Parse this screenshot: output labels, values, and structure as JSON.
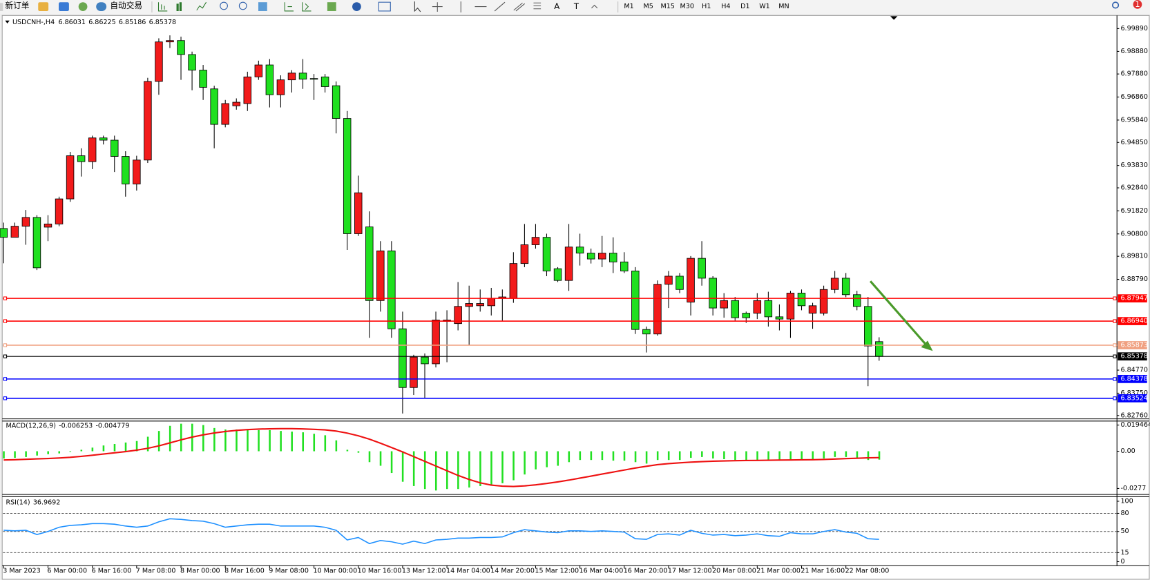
{
  "toolbar": {
    "new_order": "新订单",
    "auto_trading": "自动交易",
    "text_tools": [
      "A",
      "T"
    ],
    "timeframes": [
      "M1",
      "M5",
      "M15",
      "M30",
      "H1",
      "H4",
      "D1",
      "W1",
      "MN"
    ],
    "notification_count": 1
  },
  "chart_data": [
    {
      "type": "candlestick",
      "title": "USDCNH-,H4",
      "categories": [
        "3 Mar 2023",
        null,
        null,
        null,
        "6 Mar 00:00",
        null,
        null,
        null,
        "6 Mar 16:00",
        null,
        null,
        null,
        "7 Mar 08:00",
        null,
        null,
        null,
        "8 Mar 00:00",
        null,
        null,
        null,
        "8 Mar 16:00",
        null,
        null,
        null,
        "9 Mar 08:00",
        null,
        null,
        null,
        "10 Mar 00:00",
        null,
        null,
        null,
        "10 Mar 16:00",
        null,
        null,
        null,
        "13 Mar 12:00",
        null,
        null,
        null,
        "14 Mar 04:00",
        null,
        null,
        null,
        "14 Mar 20:00",
        null,
        null,
        null,
        "15 Mar 12:00",
        null,
        null,
        null,
        "16 Mar 04:00",
        null,
        null,
        null,
        "16 Mar 20:00",
        null,
        null,
        null,
        "17 Mar 12:00",
        null,
        null,
        null,
        "20 Mar 08:00",
        null,
        null,
        null,
        "21 Mar 00:00",
        null,
        null,
        null,
        "21 Mar 16:00",
        null,
        null,
        null,
        "22 Mar 08:00",
        null,
        null,
        null
      ],
      "open": [
        6.9104,
        6.9065,
        6.9114,
        6.9153,
        6.911,
        6.9124,
        6.9235,
        6.9426,
        6.94,
        6.9505,
        6.9495,
        6.9423,
        6.9301,
        6.9407,
        6.9755,
        6.993,
        6.9936,
        6.9874,
        6.9805,
        6.9722,
        6.9565,
        6.9647,
        6.9657,
        6.9775,
        6.9828,
        6.9696,
        6.9762,
        6.9792,
        6.9768,
        6.9775,
        6.9736,
        6.9591,
        6.9081,
        6.9111,
        6.8785,
        6.9005,
        6.866,
        6.84,
        6.8535,
        6.8505,
        6.8693,
        6.8683,
        6.8759,
        6.8762,
        6.8762,
        6.8795,
        6.8795,
        6.8949,
        6.9032,
        6.9065,
        6.8926,
        6.8874,
        6.9022,
        6.8995,
        6.8969,
        6.8995,
        6.8956,
        6.8916,
        6.8657,
        6.8637,
        6.8857,
        6.8893,
        6.8778,
        6.8972,
        6.8884,
        6.8752,
        6.8785,
        6.8729,
        6.8729,
        6.8785,
        6.8713,
        6.8703,
        6.8818,
        6.8729,
        6.8729,
        6.8834,
        6.8884,
        6.8811,
        6.8759,
        6.86031
      ],
      "high": [
        6.913,
        6.913,
        6.9186,
        6.9163,
        6.9163,
        6.9245,
        6.9443,
        6.9459,
        6.9515,
        6.9515,
        6.9515,
        6.9446,
        6.9426,
        6.9771,
        6.9946,
        6.9959,
        6.9953,
        6.9887,
        6.9828,
        6.9736,
        6.9673,
        6.968,
        6.9798,
        6.9847,
        6.9854,
        6.9782,
        6.9805,
        6.9854,
        6.9788,
        6.9788,
        6.9755,
        6.9624,
        6.9338,
        6.918,
        6.9048,
        6.9048,
        6.8736,
        6.8545,
        6.8551,
        6.8736,
        6.8742,
        6.8867,
        6.8851,
        6.8834,
        6.8841,
        6.8834,
        6.8999,
        6.9124,
        6.9124,
        6.9081,
        6.8933,
        6.9124,
        6.9081,
        6.9015,
        6.9071,
        6.9065,
        6.8999,
        6.8933,
        6.867,
        6.8874,
        6.8916,
        6.8907,
        6.8982,
        6.9048,
        6.8893,
        6.8818,
        6.8801,
        6.8736,
        6.8818,
        6.8824,
        6.8768,
        6.8828,
        6.8834,
        6.8775,
        6.8851,
        6.8916,
        6.8907,
        6.8828,
        6.8801,
        6.86225
      ],
      "low": [
        6.895,
        6.9065,
        6.9032,
        6.892,
        6.9048,
        6.9114,
        6.9222,
        6.9334,
        6.9367,
        6.9476,
        6.9354,
        6.9245,
        6.9272,
        6.9394,
        6.9696,
        6.9903,
        6.9762,
        6.9716,
        6.9673,
        6.9459,
        6.9552,
        6.963,
        6.9624,
        6.9762,
        6.964,
        6.964,
        6.9706,
        6.9722,
        6.9673,
        6.9706,
        6.9525,
        6.9009,
        6.9071,
        6.862,
        6.8736,
        6.862,
        6.8285,
        6.8367,
        6.8354,
        6.8489,
        6.8512,
        6.8653,
        6.8587,
        6.8736,
        6.8719,
        6.8696,
        6.8775,
        6.8933,
        6.9015,
        6.8893,
        6.8867,
        6.8828,
        6.894,
        6.8949,
        6.8933,
        6.8907,
        6.8907,
        6.8637,
        6.8555,
        6.863,
        6.8752,
        6.8818,
        6.8719,
        6.8851,
        6.8719,
        6.8709,
        6.8696,
        6.8686,
        6.8703,
        6.867,
        6.8653,
        6.862,
        6.8742,
        6.866,
        6.8719,
        6.8818,
        6.88,
        6.8742,
        6.8406,
        6.85186
      ],
      "close": [
        6.9065,
        6.9114,
        6.9153,
        6.893,
        6.9124,
        6.9235,
        6.9426,
        6.94,
        6.9505,
        6.9495,
        6.9423,
        6.9301,
        6.9407,
        6.9755,
        6.993,
        6.9936,
        6.9874,
        6.9805,
        6.9729,
        6.9565,
        6.9657,
        6.9663,
        6.9775,
        6.9828,
        6.9696,
        6.9762,
        6.9792,
        6.9765,
        6.9765,
        6.9732,
        6.9591,
        6.9081,
        6.9262,
        6.8785,
        6.9005,
        6.866,
        6.84,
        6.8535,
        6.8505,
        6.8699,
        6.8699,
        6.8759,
        6.8772,
        6.8772,
        6.8795,
        6.8801,
        6.8949,
        6.9032,
        6.9065,
        6.8916,
        6.8874,
        6.9022,
        6.8995,
        6.8969,
        6.8995,
        6.8956,
        6.8916,
        6.8657,
        6.8637,
        6.8857,
        6.8893,
        6.8834,
        6.8972,
        6.8884,
        6.8752,
        6.8785,
        6.8709,
        6.8709,
        6.8785,
        6.8713,
        6.8703,
        6.8818,
        6.8762,
        6.8762,
        6.8834,
        6.8884,
        6.8811,
        6.8759,
        6.8584,
        6.85378
      ],
      "up_color": "#f21b1b",
      "down_color": "#1fe01f",
      "ylim": [
        6.8263,
        7.0044
      ],
      "yticks": [
        {
          "value": 6.9989,
          "label": "6.99890"
        },
        {
          "value": 6.9888,
          "label": "6.98880"
        },
        {
          "value": 6.9788,
          "label": "6.97880"
        },
        {
          "value": 6.9686,
          "label": "6.96860"
        },
        {
          "value": 6.9584,
          "label": "6.95840"
        },
        {
          "value": 6.9485,
          "label": "6.94850"
        },
        {
          "value": 6.9383,
          "label": "6.93830"
        },
        {
          "value": 6.9284,
          "label": "6.92840"
        },
        {
          "value": 6.9182,
          "label": "6.91820"
        },
        {
          "value": 6.908,
          "label": "6.90800"
        },
        {
          "value": 6.8981,
          "label": "6.89810"
        },
        {
          "value": 6.8879,
          "label": "6.88790"
        },
        {
          "value": 6.8477,
          "label": "6.84770"
        },
        {
          "value": 6.8375,
          "label": "6.83750"
        },
        {
          "value": 6.8276,
          "label": "6.82760"
        }
      ],
      "grid": false,
      "hlines": [
        {
          "value": 6.87947,
          "color": "#ff0000"
        },
        {
          "value": 6.8694,
          "label": "6.86940",
          "color": "#ff0000"
        },
        {
          "value": 6.85873,
          "color": "#f0a080"
        },
        {
          "value": 6.85378,
          "color": "#000000"
        },
        {
          "value": 6.84378,
          "color": "#0000ff"
        },
        {
          "value": 6.83524,
          "color": "#0000ff"
        }
      ]
    },
    {
      "type": "macd",
      "title": "MACD(12,26,9)",
      "series": [
        {
          "style": "bar",
          "color": "#22e022",
          "values": [
            -0.0054,
            -0.0049,
            -0.0043,
            -0.0032,
            -0.0022,
            -0.0016,
            -0.0005,
            0.0011,
            0.0027,
            0.0043,
            0.0054,
            0.0065,
            0.0076,
            0.0108,
            0.0151,
            0.0189,
            0.0205,
            0.0205,
            0.0195,
            0.0173,
            0.0162,
            0.0162,
            0.0162,
            0.0157,
            0.0157,
            0.0151,
            0.0146,
            0.0141,
            0.013,
            0.0119,
            0.0081,
            0.0011,
            -0.0011,
            -0.0081,
            -0.0108,
            -0.0162,
            -0.0227,
            -0.0259,
            -0.0281,
            -0.0292,
            -0.0281,
            -0.0281,
            -0.027,
            -0.0259,
            -0.0249,
            -0.0238,
            -0.0216,
            -0.0173,
            -0.0135,
            -0.0119,
            -0.0108,
            -0.0081,
            -0.0065,
            -0.0065,
            -0.0065,
            -0.007,
            -0.007,
            -0.0081,
            -0.0092,
            -0.0065,
            -0.0065,
            -0.0065,
            -0.0049,
            -0.0043,
            -0.0054,
            -0.0059,
            -0.0065,
            -0.0065,
            -0.0065,
            -0.007,
            -0.007,
            -0.0065,
            -0.0065,
            -0.0065,
            -0.0054,
            -0.0043,
            -0.0043,
            -0.0049,
            -0.0065,
            -0.006253
          ]
        },
        {
          "style": "line",
          "color": "#ee1111",
          "values": [
            -0.0065,
            -0.0063,
            -0.006,
            -0.0057,
            -0.0054,
            -0.005,
            -0.0045,
            -0.0038,
            -0.003,
            -0.0021,
            -0.0012,
            -0.0003,
            0.0008,
            0.0022,
            0.004,
            0.0062,
            0.0085,
            0.0105,
            0.0122,
            0.0136,
            0.0147,
            0.0155,
            0.0161,
            0.0165,
            0.0167,
            0.0168,
            0.0168,
            0.0166,
            0.0163,
            0.0159,
            0.015,
            0.0135,
            0.0115,
            0.009,
            0.006,
            0.0028,
            -0.0005,
            -0.004,
            -0.0075,
            -0.011,
            -0.0145,
            -0.018,
            -0.021,
            -0.0235,
            -0.0252,
            -0.026,
            -0.0262,
            -0.0258,
            -0.025,
            -0.024,
            -0.0228,
            -0.0215,
            -0.02,
            -0.0185,
            -0.017,
            -0.0155,
            -0.014,
            -0.0125,
            -0.0112,
            -0.01,
            -0.0092,
            -0.0086,
            -0.0081,
            -0.0077,
            -0.0074,
            -0.0072,
            -0.007,
            -0.0069,
            -0.0068,
            -0.0067,
            -0.0066,
            -0.0065,
            -0.0064,
            -0.0063,
            -0.0061,
            -0.0058,
            -0.0055,
            -0.0052,
            -0.0049,
            -0.004779
          ]
        }
      ],
      "ylim": [
        -0.0319,
        0.0222
      ],
      "yticks": [
        0.019464,
        {
          "value": 0,
          "label": "0.00"
        },
        -0.0277
      ]
    },
    {
      "type": "line",
      "title": "RSI(14)",
      "color": "#1e90ff",
      "values": [
        52,
        51,
        52,
        45,
        50,
        57,
        60,
        61,
        63,
        63,
        62,
        59,
        57,
        59,
        66,
        71,
        70,
        68,
        67,
        63,
        57,
        59,
        61,
        62,
        62,
        59,
        59,
        59,
        59,
        57,
        52,
        36,
        40,
        30,
        35,
        33,
        29,
        34,
        30,
        36,
        37,
        39,
        39,
        40,
        40,
        41,
        48,
        53,
        51,
        49,
        48,
        51,
        51,
        50,
        51,
        50,
        49,
        38,
        37,
        45,
        46,
        44,
        52,
        47,
        44,
        45,
        43,
        44,
        46,
        43,
        42,
        48,
        46,
        46,
        50,
        53,
        49,
        47,
        38,
        36.9692
      ],
      "ylim": [
        -6,
        107
      ],
      "yticks": [
        100,
        80,
        50,
        15,
        0
      ],
      "levels": [
        80,
        50,
        15
      ]
    }
  ]
}
